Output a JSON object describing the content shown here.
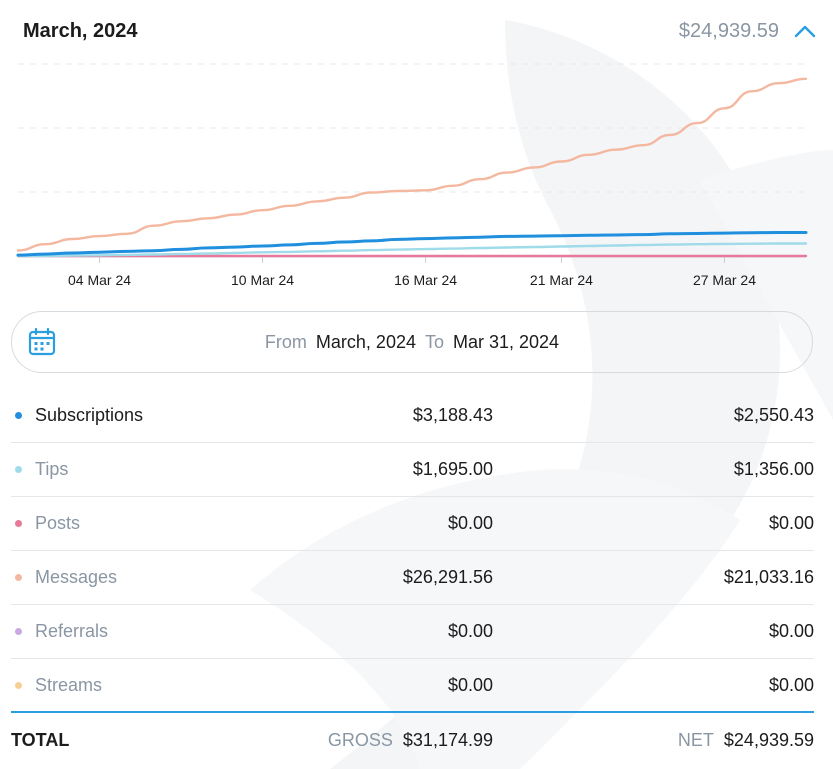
{
  "header": {
    "title": "March, 2024",
    "total": "$24,939.59"
  },
  "icons": {
    "collapse": "chevron-up-icon",
    "calendar": "calendar-icon"
  },
  "colors": {
    "accent": "#2a9ee0",
    "subscriptions": "#1f8fde",
    "tips": "#9fdbe9",
    "posts": "#e7799a",
    "messages": "#f4b7a0",
    "referrals": "#c9a9e3",
    "streams": "#f5cf95"
  },
  "chart_data": {
    "type": "line",
    "x": [
      "01 Mar 24",
      "02 Mar 24",
      "03 Mar 24",
      "04 Mar 24",
      "05 Mar 24",
      "06 Mar 24",
      "07 Mar 24",
      "08 Mar 24",
      "09 Mar 24",
      "10 Mar 24",
      "11 Mar 24",
      "12 Mar 24",
      "13 Mar 24",
      "14 Mar 24",
      "15 Mar 24",
      "16 Mar 24",
      "17 Mar 24",
      "18 Mar 24",
      "19 Mar 24",
      "20 Mar 24",
      "21 Mar 24",
      "22 Mar 24",
      "23 Mar 24",
      "24 Mar 24",
      "25 Mar 24",
      "26 Mar 24",
      "27 Mar 24",
      "28 Mar 24",
      "29 Mar 24",
      "30 Mar 24"
    ],
    "x_ticks": [
      "04 Mar 24",
      "10 Mar 24",
      "16 Mar 24",
      "21 Mar 24",
      "27 Mar 24"
    ],
    "series": [
      {
        "name": "Messages",
        "color": "#f4b7a0",
        "values": [
          750,
          1600,
          2300,
          2700,
          3000,
          4100,
          4700,
          5100,
          5600,
          6200,
          6800,
          7400,
          7900,
          8600,
          8800,
          8900,
          9500,
          10400,
          11300,
          12000,
          12800,
          13700,
          14400,
          15000,
          16400,
          18000,
          20000,
          22300,
          23400,
          24000
        ]
      },
      {
        "name": "Subscriptions",
        "color": "#1f8fde",
        "values": [
          120,
          260,
          400,
          520,
          620,
          720,
          900,
          1100,
          1200,
          1350,
          1500,
          1700,
          1900,
          2050,
          2250,
          2350,
          2450,
          2550,
          2650,
          2700,
          2750,
          2800,
          2850,
          2900,
          3000,
          3050,
          3100,
          3150,
          3180,
          3188
        ]
      },
      {
        "name": "Tips",
        "color": "#9fdbe9",
        "values": [
          0,
          0,
          50,
          100,
          150,
          200,
          280,
          350,
          420,
          500,
          560,
          640,
          720,
          800,
          870,
          940,
          1000,
          1080,
          1150,
          1220,
          1290,
          1360,
          1420,
          1490,
          1550,
          1600,
          1640,
          1670,
          1690,
          1695
        ]
      },
      {
        "name": "Posts",
        "color": "#e7799a",
        "values": [
          0,
          0,
          0,
          0,
          0,
          0,
          0,
          0,
          0,
          0,
          0,
          0,
          0,
          0,
          0,
          0,
          0,
          0,
          0,
          0,
          0,
          0,
          0,
          0,
          0,
          0,
          0,
          0,
          0,
          0
        ]
      }
    ],
    "ylim": [
      0,
      26000
    ],
    "grid": true
  },
  "filter": {
    "from_label": "From",
    "from_value": "March, 2024",
    "to_label": "To",
    "to_value": "Mar 31, 2024"
  },
  "rows": [
    {
      "label": "Subscriptions",
      "gross": "$3,188.43",
      "net": "$2,550.43"
    },
    {
      "label": "Tips",
      "gross": "$1,695.00",
      "net": "$1,356.00"
    },
    {
      "label": "Posts",
      "gross": "$0.00",
      "net": "$0.00"
    },
    {
      "label": "Messages",
      "gross": "$26,291.56",
      "net": "$21,033.16"
    },
    {
      "label": "Referrals",
      "gross": "$0.00",
      "net": "$0.00"
    },
    {
      "label": "Streams",
      "gross": "$0.00",
      "net": "$0.00"
    }
  ],
  "totals": {
    "label": "TOTAL",
    "gross_label": "GROSS",
    "gross": "$31,174.99",
    "net_label": "NET",
    "net": "$24,939.59"
  }
}
